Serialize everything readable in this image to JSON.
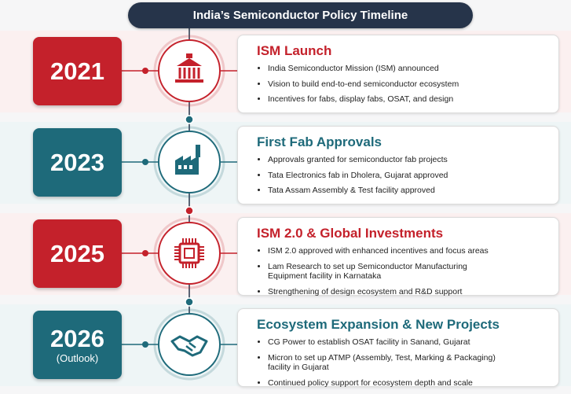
{
  "title": "India’s Semiconductor Policy Timeline",
  "timeline": [
    {
      "year": "2021",
      "heading": "ISM Launch",
      "bullets": [
        "India Semiconductor Mission (ISM) announced",
        "Vision to build end-to-end semiconductor ecosystem",
        "Incentives for fabs, display fabs, OSAT, and design"
      ]
    },
    {
      "year": "2023",
      "heading": "First Fab Approvals",
      "bullets": [
        "Approvals granted for semiconductor fab projects",
        "Tata Electronics fab in Dholera, Gujarat approved",
        "Tata Assam Assembly & Test facility approved"
      ]
    },
    {
      "year": "2025",
      "heading": "ISM 2.0 & Global Investments",
      "bullets": [
        "ISM 2.0 approved with enhanced incentives and focus areas",
        "Lam Research to set up Semiconductor Manufacturing Equipment facility in Karnataka",
        "Strengthening of design ecosystem and R&D support"
      ]
    },
    {
      "year": "2026",
      "note": "(Outlook)",
      "heading": "Ecosystem Expansion & New Projects",
      "bullets": [
        "CG Power to establish OSAT facility in Sanand, Gujarat",
        "Micron to set up ATMP (Assembly, Test, Marking & Packaging) facility in Gujarat",
        "Continued policy support for ecosystem depth and scale"
      ]
    }
  ]
}
